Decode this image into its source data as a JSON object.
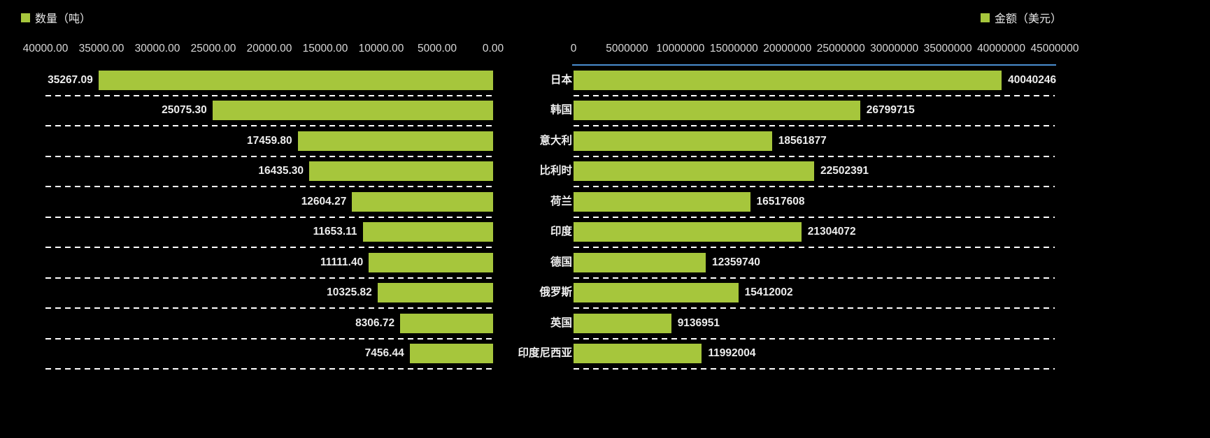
{
  "legend": {
    "left": {
      "label": "数量（吨）",
      "color": "#a6c63c"
    },
    "right": {
      "label": "金额（美元）",
      "color": "#a6c63c"
    }
  },
  "chart_data": {
    "type": "bar",
    "orientation": "horizontal",
    "layout_hint": "tornado chart: quantity series on left with reversed axis, amount series on right, category labels centered, dashed white row separators, black background",
    "background": "#000000",
    "bar_color": "#a6c63c",
    "gridline_color": "#ffffff",
    "axis_line_color": "#4a8ed0",
    "categories": [
      "日本",
      "韩国",
      "意大利",
      "比利时",
      "荷兰",
      "印度",
      "德国",
      "俄罗斯",
      "英国",
      "印度尼西亚"
    ],
    "series": [
      {
        "name": "数量（吨）",
        "side": "left",
        "axis_reversed": true,
        "xlim": [
          0,
          40000
        ],
        "ticks": [
          40000,
          35000,
          30000,
          25000,
          20000,
          15000,
          10000,
          5000,
          0
        ],
        "tick_labels": [
          "40000.00",
          "35000.00",
          "30000.00",
          "25000.00",
          "20000.00",
          "15000.00",
          "10000.00",
          "5000.00",
          "0.00"
        ],
        "values": [
          35267.09,
          25075.3,
          17459.8,
          16435.3,
          12604.27,
          11653.11,
          11111.4,
          10325.82,
          8306.72,
          7456.44
        ],
        "value_labels": [
          "35267.09",
          "25075.30",
          "17459.80",
          "16435.30",
          "12604.27",
          "11653.11",
          "11111.40",
          "10325.82",
          "8306.72",
          "7456.44"
        ]
      },
      {
        "name": "金额（美元）",
        "side": "right",
        "axis_reversed": false,
        "xlim": [
          0,
          45000000
        ],
        "ticks": [
          0,
          5000000,
          10000000,
          15000000,
          20000000,
          25000000,
          30000000,
          35000000,
          40000000,
          45000000
        ],
        "tick_labels": [
          "0",
          "5000000",
          "10000000",
          "15000000",
          "20000000",
          "25000000",
          "30000000",
          "35000000",
          "40000000",
          "45000000"
        ],
        "values": [
          40040246,
          26799715,
          18561877,
          22502391,
          16517608,
          21304072,
          12359740,
          15412002,
          9136951,
          11992004
        ],
        "value_labels": [
          "40040246",
          "26799715",
          "18561877",
          "22502391",
          "16517608",
          "21304072",
          "12359740",
          "15412002",
          "9136951",
          "11992004"
        ]
      }
    ]
  }
}
